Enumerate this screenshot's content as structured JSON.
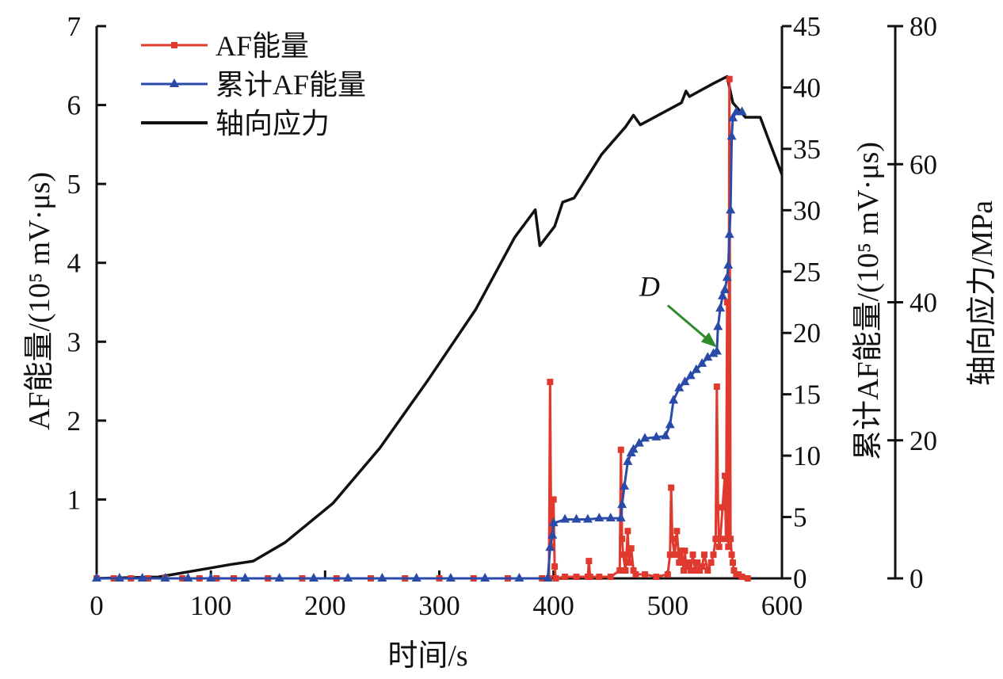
{
  "chart_data": {
    "type": "line",
    "title": "",
    "xlabel": "时间/s",
    "xlim": [
      0,
      600
    ],
    "xticks": [
      0,
      100,
      200,
      300,
      400,
      500,
      600
    ],
    "axes": {
      "left": {
        "label": "AF能量/(10⁵ mV·μs)",
        "ylim": [
          0,
          7
        ],
        "ticks": [
          1,
          2,
          3,
          4,
          5,
          6,
          7
        ]
      },
      "middle": {
        "label": "累计AF能量/(10⁵ mV·μs)",
        "ylim": [
          0,
          45
        ],
        "ticks": [
          0,
          5,
          10,
          15,
          20,
          25,
          30,
          35,
          40,
          45
        ]
      },
      "right": {
        "label": "轴向应力/MPa",
        "ylim": [
          0,
          80
        ],
        "ticks": [
          0,
          20,
          40,
          60,
          80
        ]
      }
    },
    "legend_position": "top-left",
    "series": [
      {
        "name": "AF能量",
        "axis": "left",
        "color": "#e03a2f",
        "marker": "square",
        "x": [
          0,
          15,
          30,
          45,
          60,
          75,
          90,
          105,
          120,
          150,
          180,
          210,
          240,
          270,
          300,
          330,
          360,
          390,
          396,
          397,
          398,
          400,
          401,
          402,
          410,
          420,
          430,
          431,
          432,
          440,
          450,
          458,
          459,
          460,
          461,
          463,
          465,
          466,
          468,
          470,
          472,
          480,
          490,
          500,
          502,
          503,
          504,
          506,
          508,
          510,
          512,
          514,
          515,
          516,
          518,
          520,
          522,
          524,
          526,
          528,
          530,
          532,
          535,
          538,
          540,
          542,
          543,
          544,
          545,
          546,
          548,
          550,
          551,
          552,
          553,
          554,
          555,
          556,
          557,
          558,
          560,
          562,
          565,
          570
        ],
        "y": [
          0,
          0,
          0,
          0,
          0,
          0,
          0,
          0,
          0,
          0,
          0,
          0,
          0,
          0,
          0,
          0,
          0,
          0,
          0,
          2.49,
          0.4,
          1.0,
          0.15,
          0,
          0.02,
          0.02,
          0.02,
          0.22,
          0.02,
          0.02,
          0.02,
          0.1,
          1.63,
          0.5,
          0.3,
          0.1,
          0.6,
          0.2,
          0.38,
          0.1,
          0.05,
          0.05,
          0.02,
          0.05,
          0.3,
          1.15,
          0.5,
          0.3,
          0.6,
          0.2,
          0.35,
          0.1,
          0.35,
          0.15,
          0.2,
          0.1,
          0.3,
          0.1,
          0.2,
          0.1,
          0.15,
          0.3,
          0.1,
          0.2,
          0.3,
          0.5,
          2.43,
          0.9,
          0.4,
          0.5,
          0.9,
          1.3,
          0.5,
          3.5,
          0.4,
          6.33,
          0.5,
          0.3,
          0.2,
          0.1,
          0.05,
          0.05,
          0.02,
          0
        ]
      },
      {
        "name": "累计AF能量",
        "axis": "middle",
        "color": "#2a4aa8",
        "marker": "triangle",
        "x": [
          0,
          20,
          40,
          60,
          80,
          100,
          130,
          160,
          190,
          220,
          250,
          280,
          310,
          340,
          370,
          395,
          397,
          399,
          400,
          410,
          420,
          430,
          440,
          450,
          459,
          460,
          462,
          465,
          468,
          470,
          475,
          480,
          490,
          498,
          502,
          505,
          510,
          515,
          520,
          525,
          530,
          535,
          540,
          543,
          544,
          546,
          548,
          550,
          552,
          553,
          554,
          555,
          556,
          557,
          560,
          565
        ],
        "y": [
          0,
          0,
          0,
          0,
          0,
          0,
          0,
          0,
          0,
          0,
          0,
          0,
          0,
          0,
          0,
          0,
          2.5,
          3.5,
          4.5,
          4.8,
          4.8,
          4.8,
          4.9,
          4.9,
          4.9,
          6,
          7.5,
          9.5,
          10.2,
          10.5,
          11,
          11.4,
          11.5,
          11.6,
          12.5,
          14.5,
          15.5,
          16,
          16.5,
          17,
          17.5,
          18,
          18.3,
          18.5,
          20.5,
          22,
          23,
          23.5,
          24.5,
          25.5,
          28,
          30,
          36,
          37.5,
          38,
          38
        ]
      },
      {
        "name": "轴向应力",
        "axis": "right",
        "color": "#111111",
        "marker": "none",
        "x": [
          0,
          54,
          96,
          117,
          137,
          165,
          207,
          248,
          290,
          332,
          366,
          384,
          388,
          401,
          408,
          418,
          442,
          463,
          470,
          476,
          512,
          516,
          519,
          540,
          552,
          557,
          568,
          581,
          588,
          600
        ],
        "y": [
          0,
          0.2,
          1.4,
          2,
          2.5,
          5.2,
          10.9,
          18.9,
          28.7,
          39,
          49.4,
          53.4,
          48.2,
          51,
          54.5,
          55.1,
          61.4,
          65.4,
          67.1,
          65.7,
          68.9,
          70.6,
          69.8,
          71.7,
          72.7,
          68.9,
          66.8,
          66.8,
          63.7,
          58.5
        ]
      }
    ],
    "annotations": [
      {
        "text": "D",
        "x": 543,
        "axis": "middle",
        "y": 18.5,
        "arrow_color": "#2e8b2e"
      }
    ]
  }
}
